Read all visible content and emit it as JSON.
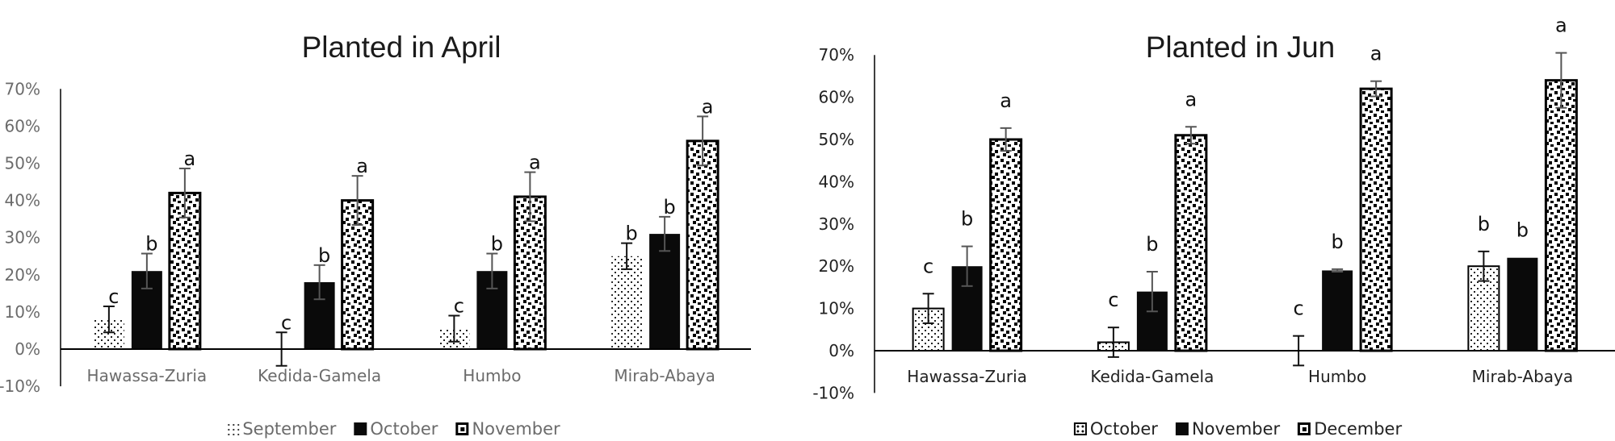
{
  "chart_data": [
    {
      "type": "bar",
      "title": "Planted in April",
      "xlabel": "",
      "ylabel": "",
      "ylim": [
        -0.1,
        0.7
      ],
      "yticks": [
        "-10%",
        "0%",
        "10%",
        "20%",
        "30%",
        "40%",
        "50%",
        "60%",
        "70%"
      ],
      "categories": [
        "Hawassa-Zuria",
        "Kedida-Gamela",
        "Humbo",
        "Mirab-Abaya"
      ],
      "series": [
        {
          "name": "September",
          "pattern": "sparse-dots",
          "values": [
            0.08,
            0.0,
            0.055,
            0.25
          ],
          "errors": [
            0.035,
            0.045,
            0.035,
            0.035
          ],
          "letters": [
            "c",
            "c",
            "c",
            "b"
          ]
        },
        {
          "name": "October",
          "pattern": "solid-black",
          "values": [
            0.21,
            0.18,
            0.21,
            0.31
          ],
          "errors": [
            0.047,
            0.046,
            0.047,
            0.046
          ],
          "letters": [
            "b",
            "b",
            "b",
            "b"
          ]
        },
        {
          "name": "November",
          "pattern": "checker",
          "values": [
            0.42,
            0.4,
            0.41,
            0.56
          ],
          "errors": [
            0.066,
            0.066,
            0.066,
            0.066
          ],
          "letters": [
            "a",
            "a",
            "a",
            "a"
          ]
        }
      ],
      "grid": false,
      "legend_position": "bottom"
    },
    {
      "type": "bar",
      "title": "Planted in Jun",
      "xlabel": "",
      "ylabel": "",
      "ylim": [
        -0.1,
        0.7
      ],
      "yticks": [
        "-10%",
        "0%",
        "10%",
        "20%",
        "30%",
        "40%",
        "50%",
        "60%",
        "70%"
      ],
      "categories": [
        "Hawassa-Zuria",
        "Kedida-Gamela",
        "Humbo",
        "Mirab-Abaya"
      ],
      "series": [
        {
          "name": "October",
          "pattern": "sparse-dots",
          "values": [
            0.1,
            0.02,
            0.0,
            0.2
          ],
          "errors": [
            0.035,
            0.035,
            0.035,
            0.035
          ],
          "letters": [
            "c",
            "c",
            "c",
            "b"
          ]
        },
        {
          "name": "November",
          "pattern": "solid-black",
          "values": [
            0.2,
            0.14,
            0.19,
            0.22
          ],
          "errors": [
            0.047,
            0.047,
            0.003,
            0.0
          ],
          "letters": [
            "b",
            "b",
            "b",
            "b"
          ]
        },
        {
          "name": "December",
          "pattern": "checker",
          "values": [
            0.5,
            0.51,
            0.62,
            0.64
          ],
          "errors": [
            0.027,
            0.02,
            0.018,
            0.065
          ],
          "letters": [
            "a",
            "a",
            "a",
            "a"
          ]
        }
      ],
      "grid": false,
      "legend_position": "bottom"
    }
  ],
  "left": {
    "title": "Planted in April",
    "legend": [
      "September",
      "October",
      "November"
    ],
    "categories": [
      "Hawassa-Zuria",
      "Kedida-Gamela",
      "Humbo",
      "Mirab-Abaya"
    ]
  },
  "right": {
    "title": "Planted in Jun",
    "legend": [
      "October",
      "November",
      "December"
    ],
    "categories": [
      "Hawassa-Zuria",
      "Kedida-Gamela",
      "Humbo",
      "Mirab-Abaya"
    ]
  },
  "colors": {
    "axis_text": "#6b6b6b",
    "right_axis_text": "#222222",
    "bar_black": "#0a0a0a",
    "error_bar": "#555555"
  }
}
